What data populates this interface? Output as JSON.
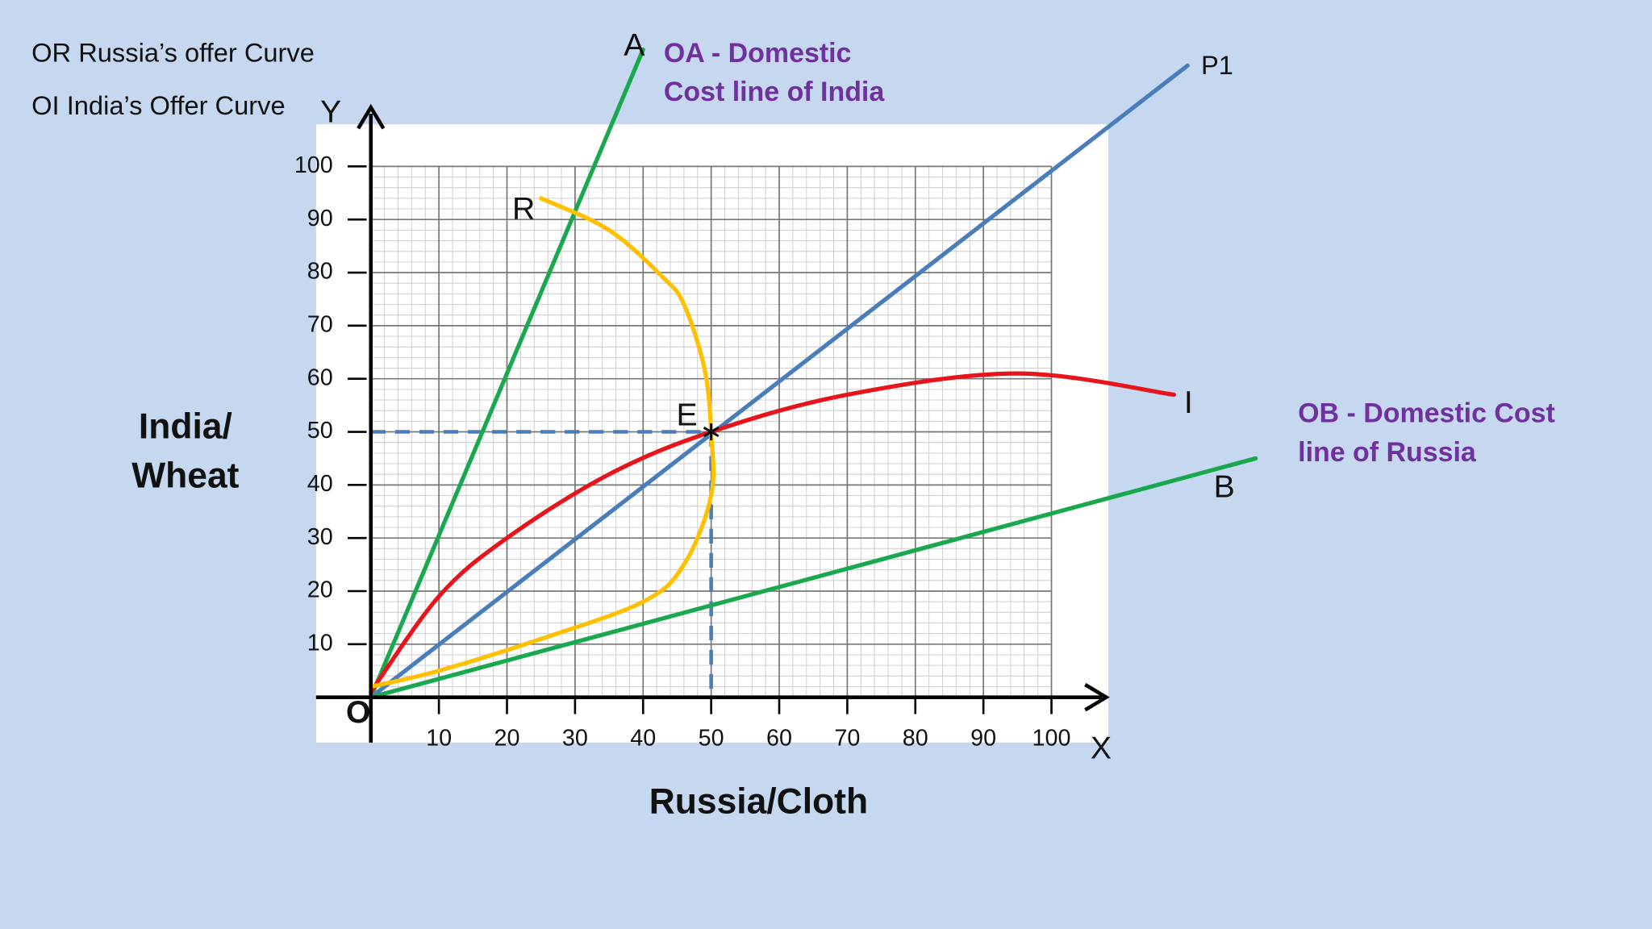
{
  "chart_data": {
    "type": "line",
    "notes": [
      "OR  Russia’s  offer Curve",
      "OI India’s Offer Curve"
    ],
    "xlabel": "Russia/Cloth",
    "ylabel": [
      "India/",
      "Wheat"
    ],
    "x_axis_name": "X",
    "y_axis_name": "Y",
    "origin_label": "O",
    "xlim": [
      0,
      100
    ],
    "ylim": [
      0,
      100
    ],
    "xticks": [
      10,
      20,
      30,
      40,
      50,
      60,
      70,
      80,
      90,
      100
    ],
    "yticks": [
      10,
      20,
      30,
      40,
      50,
      60,
      70,
      80,
      90,
      100
    ],
    "grid": true,
    "annotations": [
      {
        "lines": [
          "OA - Domestic",
          "Cost line of India"
        ]
      },
      {
        "lines": [
          "OB - Domestic Cost",
          "line of Russia"
        ]
      }
    ],
    "series": [
      {
        "label": "A",
        "color": "#1aa84f",
        "x": [
          0,
          40
        ],
        "values": [
          0,
          122
        ]
      },
      {
        "label": "P1",
        "color": "#4a7ebb",
        "x": [
          0,
          120
        ],
        "values": [
          0,
          119
        ]
      },
      {
        "label": "B",
        "color": "#1aa84f",
        "x": [
          0,
          130
        ],
        "values": [
          0,
          45
        ]
      },
      {
        "label": "I",
        "color": "#e8141c",
        "x": [
          0,
          10,
          20,
          35,
          50,
          70,
          95,
          118
        ],
        "values": [
          1,
          19,
          30,
          42,
          50,
          57,
          61,
          57
        ]
      },
      {
        "label": "R",
        "color": "#ffc000",
        "x": [
          0,
          10,
          25,
          40,
          46,
          50,
          50,
          49,
          46,
          43,
          35,
          25
        ],
        "values": [
          2,
          5,
          11,
          18,
          25,
          38,
          50,
          62,
          74,
          79,
          88,
          94
        ]
      }
    ],
    "guides": [
      {
        "color": "#4a7ebb",
        "x": [
          0,
          50
        ],
        "values": [
          50,
          50
        ]
      },
      {
        "color": "#4a7ebb",
        "x": [
          50,
          50
        ],
        "values": [
          50,
          0
        ]
      }
    ],
    "point": {
      "label": "E",
      "x": 50,
      "y": 50
    }
  }
}
